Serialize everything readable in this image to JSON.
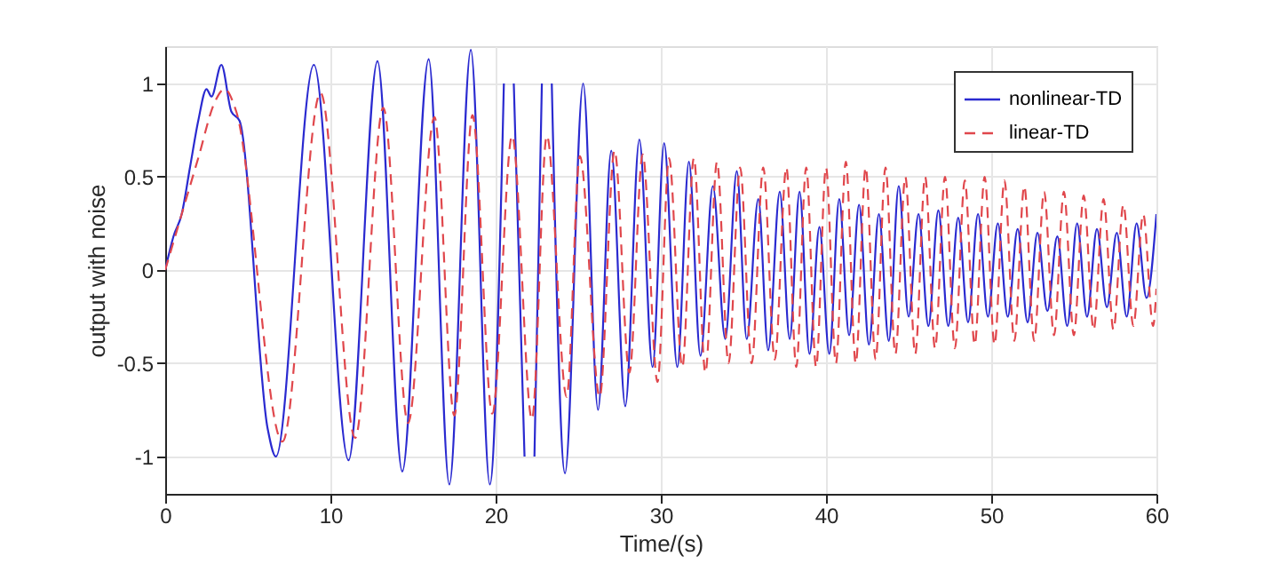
{
  "chart_data": {
    "type": "line",
    "xlabel": "Time/(s)",
    "ylabel": "output with noise",
    "xlim": [
      0,
      60
    ],
    "xticks": [
      0,
      10,
      20,
      30,
      40,
      50,
      60
    ],
    "ylim": [
      -1.2,
      1.2
    ],
    "yticks": [
      -1,
      -0.5,
      0,
      0.5,
      1
    ],
    "grid": true,
    "legend": "top right",
    "marker": "none",
    "series": [
      {
        "name": "nonlinear-TD",
        "color": "#2a2ad0",
        "line_style": "solid",
        "x": [
          0,
          0.5,
          1,
          1.5,
          2,
          2.5,
          2.8,
          3.4,
          4,
          4.5,
          6.2,
          6.7,
          9.0,
          11.1,
          12.85,
          14.35,
          15.95,
          17.2,
          18.5,
          19.65,
          20.5,
          20.8,
          21.1,
          21.75,
          22.05,
          22.35,
          22.8,
          23.1,
          23.4,
          24.2,
          25.3,
          26.2,
          27.0,
          27.85,
          28.7,
          29.5,
          30.2,
          31.0,
          31.7,
          32.4,
          33.15,
          33.9,
          34.6,
          35.2,
          35.9,
          36.5,
          37.2,
          37.8,
          38.4,
          39.0,
          39.6,
          40.2,
          40.8,
          41.4,
          42.0,
          42.6,
          43.2,
          43.8,
          44.4,
          45.0,
          45.6,
          46.2,
          46.8,
          47.4,
          48.0,
          48.6,
          49.2,
          49.8,
          50.4,
          51.0,
          51.6,
          52.2,
          52.8,
          53.4,
          54.0,
          54.6,
          55.2,
          55.8,
          56.4,
          57.0,
          57.6,
          58.2,
          58.8,
          59.4,
          60
        ],
        "values": [
          0,
          0.18,
          0.3,
          0.55,
          0.8,
          0.97,
          0.93,
          1.1,
          0.85,
          0.8,
          -0.85,
          -1.0,
          1.1,
          -1.02,
          1.12,
          -1.08,
          1.13,
          -1.15,
          1.18,
          -1.15,
          1.0,
          null,
          1.0,
          -1.0,
          null,
          -1.0,
          1.0,
          null,
          1.0,
          -1.09,
          1.0,
          -0.75,
          0.64,
          -0.73,
          0.7,
          -0.52,
          0.68,
          -0.52,
          0.58,
          -0.46,
          0.45,
          -0.37,
          0.53,
          -0.37,
          0.38,
          -0.43,
          0.42,
          -0.37,
          0.42,
          -0.45,
          0.23,
          -0.45,
          0.38,
          -0.35,
          0.35,
          -0.4,
          0.3,
          -0.38,
          0.45,
          -0.25,
          0.3,
          -0.3,
          0.32,
          -0.3,
          0.28,
          -0.28,
          0.3,
          -0.25,
          0.25,
          -0.25,
          0.22,
          -0.28,
          0.2,
          -0.22,
          0.18,
          -0.3,
          0.25,
          -0.25,
          0.22,
          -0.2,
          0.2,
          -0.25,
          0.25,
          -0.15,
          0.3
        ]
      },
      {
        "name": "linear-TD",
        "color": "#e0474c",
        "line_style": "dashed",
        "x": [
          0,
          1,
          2,
          3,
          3.6,
          4.3,
          7.1,
          9.4,
          11.5,
          13.2,
          14.7,
          16.3,
          17.5,
          18.6,
          19.8,
          21.0,
          22.2,
          23.1,
          24.3,
          25.1,
          26.3,
          27.2,
          28.1,
          28.9,
          29.8,
          30.5,
          31.3,
          32.0,
          32.7,
          33.4,
          34.1,
          34.8,
          35.5,
          36.2,
          36.9,
          37.6,
          38.2,
          38.8,
          39.4,
          40.0,
          40.6,
          41.2,
          41.8,
          42.4,
          43.0,
          43.6,
          44.2,
          44.8,
          45.4,
          46.0,
          46.6,
          47.2,
          47.8,
          48.4,
          49.0,
          49.6,
          50.2,
          50.8,
          51.4,
          52.0,
          52.6,
          53.2,
          53.8,
          54.4,
          55.0,
          55.6,
          56.2,
          56.8,
          57.4,
          58.0,
          58.6,
          59.2,
          59.8,
          60
        ],
        "values": [
          0,
          0.3,
          0.6,
          0.9,
          0.97,
          0.85,
          -0.92,
          0.95,
          -0.9,
          0.87,
          -0.82,
          0.82,
          -0.78,
          0.83,
          -0.77,
          0.72,
          -0.8,
          0.72,
          -0.68,
          0.61,
          -0.68,
          0.64,
          -0.55,
          0.62,
          -0.6,
          0.6,
          -0.52,
          0.6,
          -0.55,
          0.58,
          -0.5,
          0.55,
          -0.5,
          0.55,
          -0.48,
          0.55,
          -0.52,
          0.55,
          -0.52,
          0.55,
          -0.5,
          0.58,
          -0.5,
          0.55,
          -0.48,
          0.55,
          -0.45,
          0.5,
          -0.45,
          0.5,
          -0.42,
          0.5,
          -0.42,
          0.48,
          -0.4,
          0.5,
          -0.4,
          0.48,
          -0.38,
          0.45,
          -0.38,
          0.42,
          -0.35,
          0.42,
          -0.35,
          0.4,
          -0.32,
          0.38,
          -0.32,
          0.35,
          -0.3,
          0.3,
          -0.3,
          -0.1
        ]
      }
    ]
  }
}
